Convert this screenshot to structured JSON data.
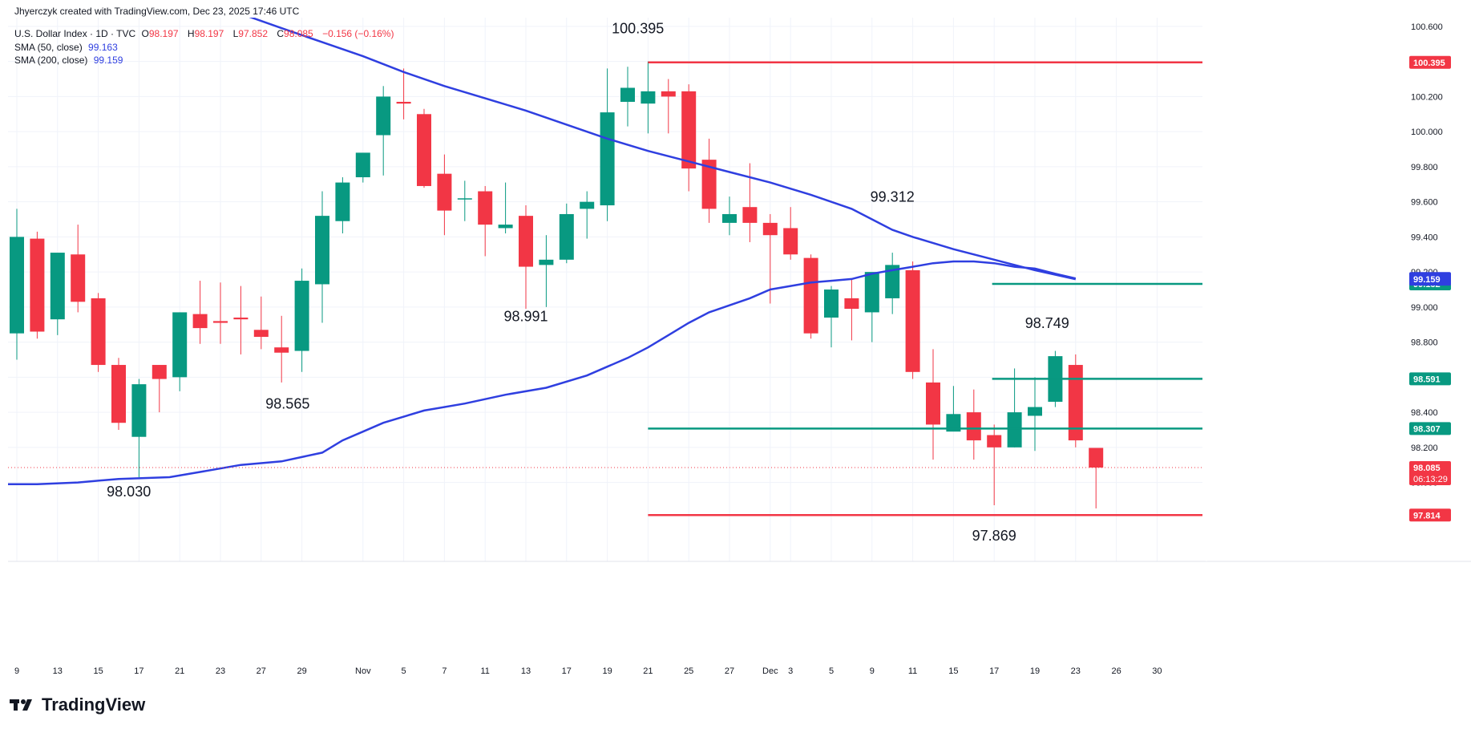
{
  "header": {
    "created_by": "Jhyerczyk created with TradingView.com, Dec 23, 2025 17:46 UTC",
    "symbol": "U.S. Dollar Index · 1D · TVC",
    "ohlc": {
      "o_label": "O",
      "o": "98.197",
      "h_label": "H",
      "h": "98.197",
      "l_label": "L",
      "l": "97.852",
      "c_label": "C",
      "c": "98.085",
      "change": "−0.156 (−0.16%)"
    },
    "sma50_label": "SMA (50, close)",
    "sma50_value": "99.163",
    "sma200_label": "SMA (200, close)",
    "sma200_value": "99.159"
  },
  "brand": {
    "name": "TradingView"
  },
  "colors": {
    "up": "#089981",
    "down": "#f23645",
    "sma": "#2f3fe0",
    "hline_red": "#f23645",
    "hline_green": "#089981",
    "grid": "#f0f3fa"
  },
  "chart_data": {
    "type": "candlestick",
    "ylim": [
      97.55,
      100.65
    ],
    "y_ticks": [
      "100.600",
      "100.400",
      "100.200",
      "100.000",
      "99.800",
      "99.600",
      "99.400",
      "99.200",
      "99.000",
      "98.800",
      "98.600",
      "98.400",
      "98.200",
      "98.000"
    ],
    "x_ticks": [
      {
        "i": 0,
        "label": "9"
      },
      {
        "i": 2,
        "label": "13"
      },
      {
        "i": 4,
        "label": "15"
      },
      {
        "i": 6,
        "label": "17"
      },
      {
        "i": 8,
        "label": "21"
      },
      {
        "i": 10,
        "label": "23"
      },
      {
        "i": 12,
        "label": "27"
      },
      {
        "i": 14,
        "label": "29"
      },
      {
        "i": 17,
        "label": "Nov"
      },
      {
        "i": 19,
        "label": "5"
      },
      {
        "i": 21,
        "label": "7"
      },
      {
        "i": 23,
        "label": "11"
      },
      {
        "i": 25,
        "label": "13"
      },
      {
        "i": 27,
        "label": "17"
      },
      {
        "i": 29,
        "label": "19"
      },
      {
        "i": 31,
        "label": "21"
      },
      {
        "i": 33,
        "label": "25"
      },
      {
        "i": 35,
        "label": "27"
      },
      {
        "i": 37,
        "label": "Dec"
      },
      {
        "i": 38,
        "label": "3"
      },
      {
        "i": 40,
        "label": "5"
      },
      {
        "i": 42,
        "label": "9"
      },
      {
        "i": 44,
        "label": "11"
      },
      {
        "i": 46,
        "label": "15"
      },
      {
        "i": 48,
        "label": "17"
      },
      {
        "i": 50,
        "label": "19"
      },
      {
        "i": 52,
        "label": "23"
      },
      {
        "i": 54,
        "label": "26"
      },
      {
        "i": 56,
        "label": "30"
      }
    ],
    "candles": [
      {
        "o": 98.85,
        "h": 99.56,
        "l": 98.7,
        "c": 99.4
      },
      {
        "o": 99.39,
        "h": 99.43,
        "l": 98.82,
        "c": 98.86
      },
      {
        "o": 98.93,
        "h": 99.3,
        "l": 98.84,
        "c": 99.31
      },
      {
        "o": 99.3,
        "h": 99.47,
        "l": 98.97,
        "c": 99.03
      },
      {
        "o": 99.05,
        "h": 99.08,
        "l": 98.63,
        "c": 98.67
      },
      {
        "o": 98.67,
        "h": 98.71,
        "l": 98.3,
        "c": 98.34
      },
      {
        "o": 98.26,
        "h": 98.59,
        "l": 98.03,
        "c": 98.56
      },
      {
        "o": 98.67,
        "h": 98.67,
        "l": 98.4,
        "c": 98.59
      },
      {
        "o": 98.6,
        "h": 98.97,
        "l": 98.52,
        "c": 98.97
      },
      {
        "o": 98.96,
        "h": 99.15,
        "l": 98.79,
        "c": 98.88
      },
      {
        "o": 98.92,
        "h": 99.14,
        "l": 98.79,
        "c": 98.91
      },
      {
        "o": 98.94,
        "h": 99.12,
        "l": 98.73,
        "c": 98.93
      },
      {
        "o": 98.87,
        "h": 99.06,
        "l": 98.76,
        "c": 98.83
      },
      {
        "o": 98.77,
        "h": 98.95,
        "l": 98.57,
        "c": 98.74
      },
      {
        "o": 98.75,
        "h": 99.22,
        "l": 98.63,
        "c": 99.15
      },
      {
        "o": 99.13,
        "h": 99.66,
        "l": 98.91,
        "c": 99.52
      },
      {
        "o": 99.49,
        "h": 99.74,
        "l": 99.42,
        "c": 99.71
      },
      {
        "o": 99.74,
        "h": 99.85,
        "l": 99.71,
        "c": 99.88
      },
      {
        "o": 99.98,
        "h": 100.26,
        "l": 99.75,
        "c": 100.2
      },
      {
        "o": 100.17,
        "h": 100.36,
        "l": 100.07,
        "c": 100.16
      },
      {
        "o": 100.1,
        "h": 100.13,
        "l": 99.68,
        "c": 99.69
      },
      {
        "o": 99.76,
        "h": 99.87,
        "l": 99.41,
        "c": 99.55
      },
      {
        "o": 99.62,
        "h": 99.72,
        "l": 99.49,
        "c": 99.62
      },
      {
        "o": 99.66,
        "h": 99.69,
        "l": 99.29,
        "c": 99.47
      },
      {
        "o": 99.45,
        "h": 99.71,
        "l": 99.42,
        "c": 99.47
      },
      {
        "o": 99.52,
        "h": 99.58,
        "l": 98.99,
        "c": 99.23
      },
      {
        "o": 99.24,
        "h": 99.41,
        "l": 99.0,
        "c": 99.27
      },
      {
        "o": 99.27,
        "h": 99.59,
        "l": 99.25,
        "c": 99.53
      },
      {
        "o": 99.56,
        "h": 99.66,
        "l": 99.39,
        "c": 99.6
      },
      {
        "o": 99.58,
        "h": 100.36,
        "l": 99.49,
        "c": 100.11
      },
      {
        "o": 100.17,
        "h": 100.37,
        "l": 100.03,
        "c": 100.25
      },
      {
        "o": 100.16,
        "h": 100.4,
        "l": 99.99,
        "c": 100.23
      },
      {
        "o": 100.23,
        "h": 100.3,
        "l": 99.99,
        "c": 100.2
      },
      {
        "o": 100.23,
        "h": 100.27,
        "l": 99.66,
        "c": 99.79
      },
      {
        "o": 99.84,
        "h": 99.96,
        "l": 99.48,
        "c": 99.56
      },
      {
        "o": 99.48,
        "h": 99.63,
        "l": 99.41,
        "c": 99.53
      },
      {
        "o": 99.57,
        "h": 99.82,
        "l": 99.37,
        "c": 99.48
      },
      {
        "o": 99.48,
        "h": 99.53,
        "l": 99.02,
        "c": 99.41
      },
      {
        "o": 99.45,
        "h": 99.57,
        "l": 99.27,
        "c": 99.3
      },
      {
        "o": 99.28,
        "h": 99.3,
        "l": 98.82,
        "c": 98.85
      },
      {
        "o": 98.94,
        "h": 99.12,
        "l": 98.77,
        "c": 99.1
      },
      {
        "o": 99.05,
        "h": 99.16,
        "l": 98.81,
        "c": 98.99
      },
      {
        "o": 98.97,
        "h": 99.17,
        "l": 98.8,
        "c": 99.2
      },
      {
        "o": 99.05,
        "h": 99.31,
        "l": 98.96,
        "c": 99.24
      },
      {
        "o": 99.21,
        "h": 99.26,
        "l": 98.59,
        "c": 98.63
      },
      {
        "o": 98.57,
        "h": 98.76,
        "l": 98.13,
        "c": 98.33
      },
      {
        "o": 98.29,
        "h": 98.55,
        "l": 98.3,
        "c": 98.39
      },
      {
        "o": 98.4,
        "h": 98.53,
        "l": 98.13,
        "c": 98.24
      },
      {
        "o": 98.27,
        "h": 98.33,
        "l": 97.87,
        "c": 98.2
      },
      {
        "o": 98.2,
        "h": 98.65,
        "l": 98.2,
        "c": 98.4
      },
      {
        "o": 98.38,
        "h": 98.6,
        "l": 98.18,
        "c": 98.43
      },
      {
        "o": 98.46,
        "h": 98.75,
        "l": 98.43,
        "c": 98.72
      },
      {
        "o": 98.67,
        "h": 98.73,
        "l": 98.2,
        "c": 98.24
      },
      {
        "o": 98.197,
        "h": 98.197,
        "l": 97.852,
        "c": 98.085
      }
    ],
    "series": [
      {
        "name": "SMA (50, close)",
        "points": [
          [
            -0.5,
            97.99
          ],
          [
            1,
            97.99
          ],
          [
            3,
            98.0
          ],
          [
            5,
            98.02
          ],
          [
            7.5,
            98.03
          ],
          [
            9,
            98.06
          ],
          [
            11,
            98.1
          ],
          [
            13,
            98.12
          ],
          [
            15,
            98.17
          ],
          [
            16,
            98.24
          ],
          [
            17,
            98.29
          ],
          [
            18,
            98.34
          ],
          [
            20,
            98.41
          ],
          [
            22,
            98.45
          ],
          [
            24,
            98.5
          ],
          [
            26,
            98.54
          ],
          [
            28,
            98.61
          ],
          [
            29,
            98.66
          ],
          [
            30,
            98.71
          ],
          [
            31,
            98.77
          ],
          [
            32,
            98.84
          ],
          [
            33,
            98.91
          ],
          [
            34,
            98.97
          ],
          [
            35,
            99.01
          ],
          [
            36,
            99.05
          ],
          [
            37,
            99.1
          ],
          [
            38,
            99.12
          ],
          [
            39,
            99.14
          ],
          [
            40,
            99.15
          ],
          [
            41,
            99.16
          ],
          [
            42,
            99.19
          ],
          [
            43,
            99.21
          ],
          [
            44,
            99.23
          ],
          [
            45,
            99.25
          ],
          [
            46,
            99.26
          ],
          [
            47,
            99.26
          ],
          [
            48,
            99.25
          ],
          [
            49,
            99.23
          ],
          [
            50,
            99.22
          ],
          [
            51,
            99.19
          ],
          [
            52,
            99.163
          ]
        ]
      },
      {
        "name": "SMA (200, close)",
        "points": [
          [
            11.3,
            100.66
          ],
          [
            13,
            100.59
          ],
          [
            15,
            100.51
          ],
          [
            17,
            100.43
          ],
          [
            19,
            100.34
          ],
          [
            21,
            100.26
          ],
          [
            23,
            100.19
          ],
          [
            25,
            100.12
          ],
          [
            27,
            100.04
          ],
          [
            29,
            99.96
          ],
          [
            31,
            99.89
          ],
          [
            33,
            99.83
          ],
          [
            35,
            99.77
          ],
          [
            37,
            99.71
          ],
          [
            39,
            99.64
          ],
          [
            41,
            99.56
          ],
          [
            42,
            99.5
          ],
          [
            43,
            99.44
          ],
          [
            44,
            99.4
          ],
          [
            46,
            99.33
          ],
          [
            48,
            99.27
          ],
          [
            50,
            99.21
          ],
          [
            52,
            99.159
          ]
        ]
      }
    ],
    "hlines": [
      {
        "value": 100.395,
        "from_i": 31,
        "color": "red",
        "label": "100.395"
      },
      {
        "value": 98.307,
        "from_i": 31,
        "color": "green",
        "label": "98.307"
      },
      {
        "value": 97.814,
        "from_i": 31,
        "color": "red",
        "label": "97.814"
      },
      {
        "value": 99.132,
        "from_i": 47.9,
        "color": "green",
        "label": "99.132"
      },
      {
        "value": 98.591,
        "from_i": 47.9,
        "color": "green",
        "label": "98.591"
      }
    ],
    "price_line": {
      "value": 98.085,
      "label": "98.085",
      "countdown": "06:13:29"
    },
    "axis_badges": [
      {
        "value": 99.163,
        "label": "99.163",
        "color": "sma"
      },
      {
        "value": 99.159,
        "label": "99.159",
        "color": "sma"
      }
    ],
    "annotations": [
      {
        "text": "100.395",
        "i": 30.5,
        "y": 100.56
      },
      {
        "text": "99.312",
        "i": 43,
        "y": 99.6
      },
      {
        "text": "98.991",
        "i": 25,
        "y": 98.92
      },
      {
        "text": "98.749",
        "i": 50.6,
        "y": 98.88
      },
      {
        "text": "98.565",
        "i": 13.3,
        "y": 98.42
      },
      {
        "text": "98.030",
        "i": 5.5,
        "y": 97.92
      },
      {
        "text": "97.869",
        "i": 48,
        "y": 97.67
      }
    ]
  }
}
